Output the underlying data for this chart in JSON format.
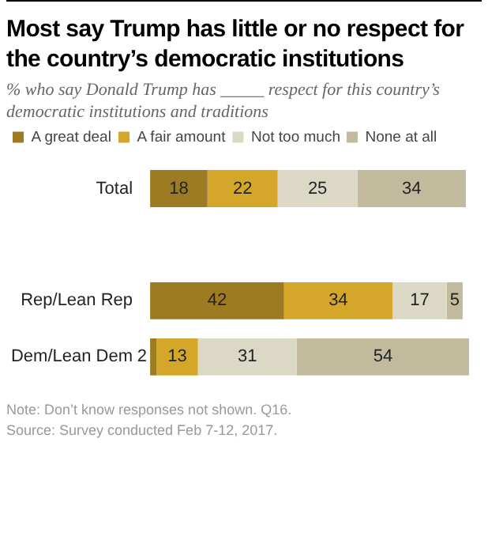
{
  "chart_data": {
    "type": "bar",
    "orientation": "horizontal",
    "stacked": true,
    "title": "Most say Trump has little or no respect for the country’s democratic institutions",
    "subtitle": "% who say Donald Trump has _____ respect for this country’s democratic institutions and traditions",
    "categories": [
      "Total",
      null,
      "Rep/Lean Rep",
      "Dem/Lean Dem"
    ],
    "series": [
      {
        "name": "A great deal",
        "color": "#9c7b22",
        "values": [
          18,
          null,
          42,
          2
        ]
      },
      {
        "name": "A fair amount",
        "color": "#d4a62a",
        "values": [
          22,
          null,
          34,
          13
        ]
      },
      {
        "name": "Not too much",
        "color": "#dcd8c6",
        "values": [
          25,
          null,
          17,
          31
        ]
      },
      {
        "name": "None at all",
        "color": "#c2ba9c",
        "values": [
          34,
          null,
          5,
          54
        ]
      }
    ],
    "xlim": [
      0,
      100
    ],
    "data_labels": true,
    "legend": "top",
    "tick_labels": "y",
    "annotations": [
      "Note: Don’t know responses not shown. Q16.",
      "Source: Survey conducted Feb 7-12, 2017."
    ]
  }
}
